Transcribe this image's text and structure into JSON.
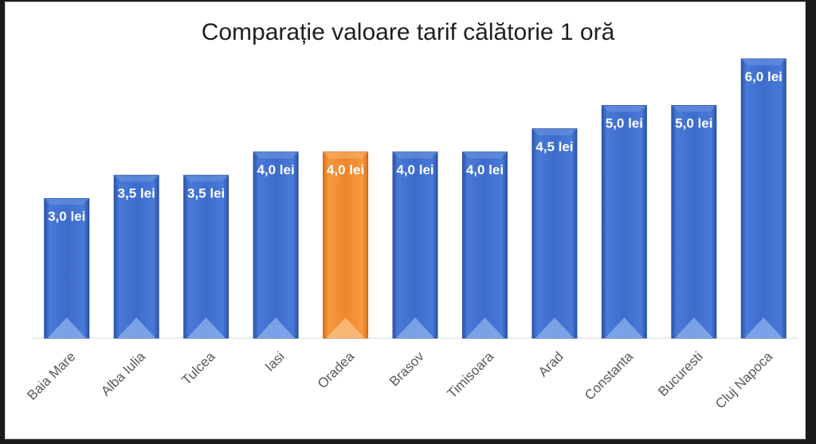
{
  "chart_data": {
    "type": "bar",
    "title": "Comparație valoare tarif călătorie 1 oră",
    "categories": [
      "Baia Mare",
      "Alba Iulia",
      "Tulcea",
      "Iasi",
      "Oradea",
      "Brasov",
      "Timisoara",
      "Arad",
      "Constanta",
      "Bucuresti",
      "Cluj Napoca"
    ],
    "values": [
      3.0,
      3.5,
      3.5,
      4.0,
      4.0,
      4.0,
      4.0,
      4.5,
      5.0,
      5.0,
      6.0
    ],
    "data_labels": [
      "3,0 lei",
      "3,5 lei",
      "3,5 lei",
      "4,0 lei",
      "4,0 lei",
      "4,0 lei",
      "4,0 lei",
      "4,5 lei",
      "5,0 lei",
      "5,0 lei",
      "6,0 lei"
    ],
    "highlight_category": "Oradea",
    "bar_color": "#3f6fd0",
    "highlight_color": "#f08a2c",
    "xlabel": "",
    "ylabel": "",
    "ylim": [
      0,
      6.0
    ],
    "grid": false,
    "legend": "none"
  }
}
